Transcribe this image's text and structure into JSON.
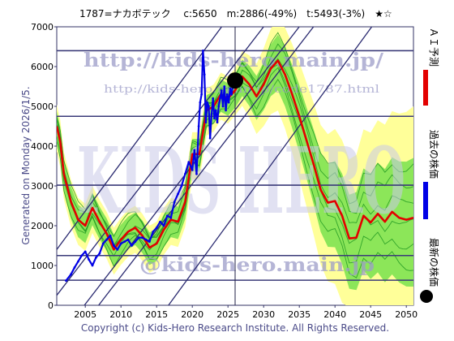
{
  "header": {
    "title": "1787=ナカボテック　 c:5650　m:2886(-49%)　t:5493(-3%)　★☆"
  },
  "side_text": {
    "generated": "Generated on Monday 2026/1/5."
  },
  "legend": {
    "ai": "ＡＩ予測",
    "past": "過去の株価",
    "latest": "最新の株価"
  },
  "watermarks": {
    "url_main": "http://kids-hero.main.jp/",
    "url_code": "http://kids-hero.main.jp/code1787.html",
    "url_bottom": "@kids-hero.main.jp",
    "logo": "KIDS HERO"
  },
  "footer": {
    "copyright": "Copyright (c) Kids-Hero Research Institute. All Rights Reserved."
  },
  "colors": {
    "ai_line": "#e30000",
    "past_line": "#0000e6",
    "latest_dot": "#000000",
    "band_green": "#66dd44",
    "band_yellow": "#ffff99",
    "frame": "#333366",
    "trend": "#2a2a70",
    "hline": "#3a3a78"
  },
  "chart_data": {
    "type": "line",
    "xlim": [
      2001,
      2051
    ],
    "ylim": [
      0,
      7000
    ],
    "x_ticks": [
      "2005",
      "2010",
      "2015",
      "2020",
      "2025",
      "2030",
      "2035",
      "2040",
      "2045",
      "2050"
    ],
    "y_ticks": [
      "0",
      "1000",
      "2000",
      "3000",
      "4000",
      "5000",
      "6000",
      "7000"
    ],
    "horizontal_levels": [
      6400,
      4750,
      3020,
      1250,
      630
    ],
    "current_marker": {
      "x": 2026.0,
      "y": 5650
    },
    "series": [
      {
        "name": "ＡＩ予測",
        "x": [
          2001.0,
          2001.5,
          2002.0,
          2003.0,
          2004.0,
          2005.0,
          2006.0,
          2007.0,
          2008.0,
          2009.0,
          2010.0,
          2011.0,
          2012.0,
          2013.0,
          2014.0,
          2015.0,
          2016.0,
          2017.0,
          2018.0,
          2019.0,
          2020.0,
          2021.0,
          2022.0,
          2023.0,
          2024.0,
          2025.0,
          2026.0,
          2027.0,
          2028.0,
          2029.0,
          2030.0,
          2031.0,
          2032.0,
          2033.0,
          2034.0,
          2035.0,
          2036.0,
          2037.0,
          2038.0,
          2039.0,
          2040.0,
          2041.0,
          2042.0,
          2043.0,
          2044.0,
          2045.0,
          2046.0,
          2047.0,
          2048.0,
          2049.0,
          2050.0,
          2051.0
        ],
        "y": [
          4500,
          4100,
          3300,
          2600,
          2150,
          2000,
          2450,
          2100,
          1800,
          1400,
          1650,
          1850,
          1950,
          1750,
          1450,
          1550,
          1900,
          2150,
          2100,
          2600,
          3800,
          3800,
          4900,
          5000,
          5300,
          5200,
          5400,
          5750,
          5550,
          5250,
          5550,
          5950,
          6150,
          5800,
          5300,
          4750,
          4150,
          3550,
          2900,
          2580,
          2620,
          2250,
          1680,
          1700,
          2250,
          2080,
          2300,
          2100,
          2350,
          2200,
          2150,
          2200
        ]
      },
      {
        "name": "過去の株価",
        "x": [
          2002.3,
          2003.0,
          2003.5,
          2004.0,
          2004.5,
          2005.0,
          2005.5,
          2006.0,
          2006.5,
          2007.0,
          2007.5,
          2008.0,
          2008.5,
          2009.0,
          2009.5,
          2010.0,
          2010.5,
          2011.0,
          2011.5,
          2012.0,
          2012.5,
          2013.0,
          2013.5,
          2014.0,
          2014.5,
          2015.0,
          2015.5,
          2016.0,
          2016.5,
          2017.0,
          2017.5,
          2018.0,
          2018.5,
          2019.0,
          2019.5,
          2020.0,
          2020.3,
          2020.6,
          2020.9,
          2021.1,
          2021.3,
          2021.5,
          2021.7,
          2021.9,
          2022.1,
          2022.3,
          2022.5,
          2022.7,
          2022.9,
          2023.1,
          2023.3,
          2023.5,
          2023.7,
          2023.9,
          2024.1,
          2024.3,
          2024.5,
          2024.7,
          2024.9,
          2025.1,
          2025.3,
          2025.5,
          2025.7,
          2026.0
        ],
        "y": [
          620,
          780,
          950,
          1100,
          1250,
          1350,
          1150,
          1000,
          1200,
          1300,
          1550,
          1650,
          1750,
          1500,
          1400,
          1550,
          1600,
          1650,
          1500,
          1600,
          1700,
          1700,
          1650,
          1600,
          1850,
          1950,
          2100,
          2000,
          2250,
          2200,
          2600,
          2800,
          3000,
          3300,
          3600,
          3400,
          3900,
          3300,
          4500,
          5100,
          5300,
          6400,
          5800,
          4600,
          5100,
          5000,
          4200,
          4800,
          5200,
          4700,
          4900,
          4600,
          5000,
          5200,
          5400,
          5000,
          5500,
          4900,
          5300,
          5100,
          5450,
          5300,
          5550,
          5650
        ]
      }
    ]
  }
}
